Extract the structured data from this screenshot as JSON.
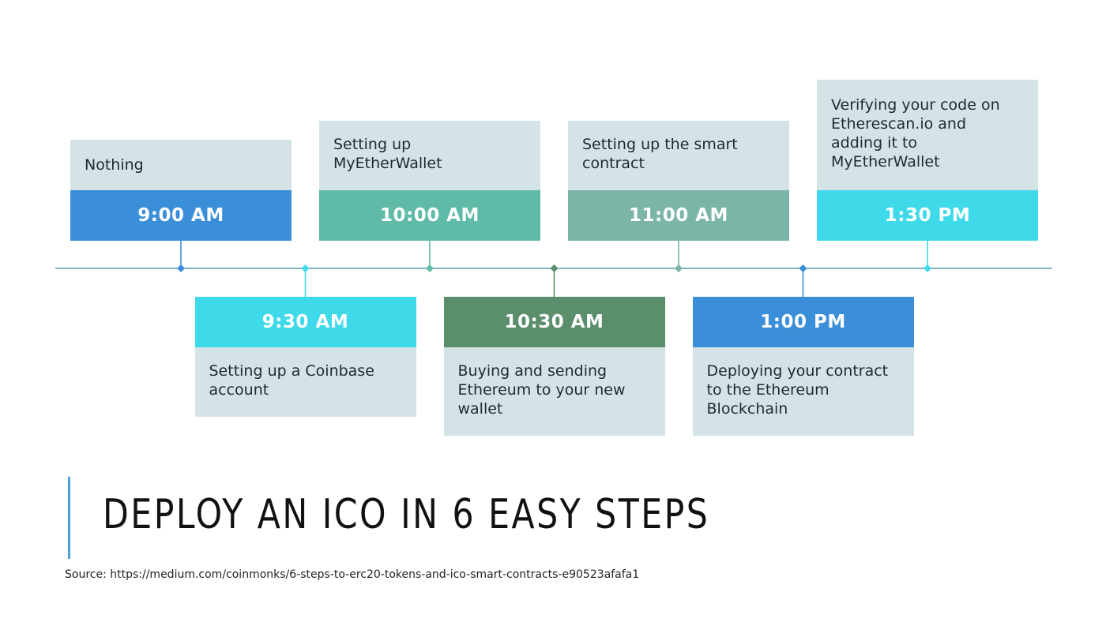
{
  "title": "DEPLOY AN ICO IN 6 EASY STEPS",
  "source": "Source: https://medium.com/coinmonks/6-steps-to-erc20-tokens-and-ico-smart-contracts-e90523afafa1",
  "colors": {
    "line": "#5a9aa8",
    "desc_bg": "#d4e4e6",
    "accent_bar": "#4aa3d8"
  },
  "steps": [
    {
      "time": "9:00 AM",
      "desc": [
        "Nothing"
      ],
      "color": "#3b8fd9",
      "position": "above"
    },
    {
      "time": "9:30 AM",
      "desc": [
        "Setting up a Coinbase",
        "account"
      ],
      "color": "#3fdaea",
      "position": "below"
    },
    {
      "time": "10:00 AM",
      "desc": [
        "Setting up",
        "MyEtherWallet"
      ],
      "color": "#5fbba8",
      "position": "above"
    },
    {
      "time": "10:30 AM",
      "desc": [
        "Buying and sending",
        "Ethereum to your new",
        "wallet"
      ],
      "color": "#5b8e6b",
      "position": "below"
    },
    {
      "time": "11:00 AM",
      "desc": [
        "Setting up the smart",
        "contract"
      ],
      "color": "#7bb5a8",
      "position": "above"
    },
    {
      "time": "1:00 PM",
      "desc": [
        "Deploying your contract",
        "to the Ethereum",
        "Blockchain"
      ],
      "color": "#3b8fd9",
      "position": "below"
    },
    {
      "time": "1:30 PM",
      "desc": [
        "Verifying your code on",
        "Etherescan.io and",
        "adding it to",
        "MyEtherWallet"
      ],
      "color": "#3fdaea",
      "position": "above"
    }
  ]
}
